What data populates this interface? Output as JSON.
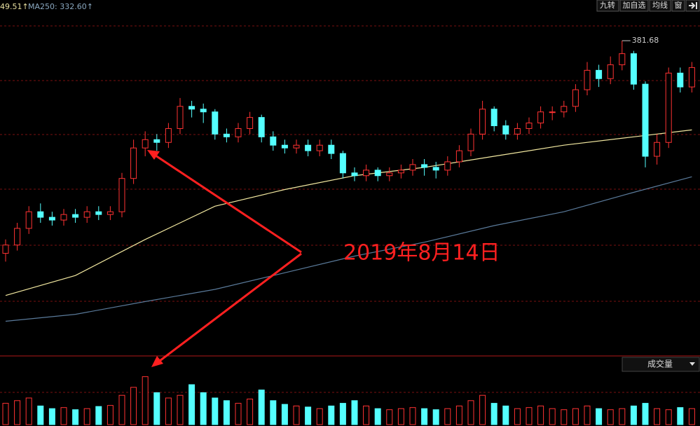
{
  "header": {
    "ma_partial": "49.51↑",
    "ma250": "MA250: 332.60↑",
    "buttons": [
      "九转",
      "加自选",
      "均线",
      "窗"
    ]
  },
  "annotation": "2019年8月14日",
  "volume_label": "成交量",
  "chart_data": {
    "type": "candlestick",
    "up_color": "#ff3232",
    "down_color": "#54ffff",
    "ylim": [
      268,
      391.3
    ],
    "volume_ylim": [
      0,
      100
    ],
    "open": [
      305,
      308,
      314,
      320,
      318,
      317,
      319,
      318,
      320,
      319,
      320,
      332,
      343,
      346,
      345,
      350,
      358,
      357,
      356,
      348,
      347,
      350,
      354,
      347,
      344,
      343,
      344,
      342,
      344,
      341,
      334,
      333,
      335,
      333,
      334,
      335,
      337,
      336,
      335,
      338,
      342,
      348,
      357,
      351,
      348,
      350,
      352,
      356,
      356,
      358,
      364,
      371,
      368,
      373,
      377,
      366,
      340,
      345,
      370,
      365
    ],
    "high": [
      310,
      316,
      322,
      323,
      320,
      321,
      321,
      322,
      322,
      322,
      334,
      346,
      349,
      348,
      352,
      361,
      360,
      359,
      357,
      350,
      352,
      356,
      355,
      349,
      346,
      346,
      346,
      346,
      346,
      342,
      336,
      337,
      336,
      336,
      337,
      339,
      339,
      338,
      340,
      344,
      350,
      360,
      358,
      353,
      352,
      354,
      358,
      358,
      360,
      366,
      374,
      373,
      376,
      381.68,
      378,
      367,
      348,
      372,
      372,
      374
    ],
    "low": [
      302,
      306,
      312,
      316,
      315,
      315,
      316,
      316,
      317,
      317,
      318,
      330,
      340,
      342,
      343,
      348,
      354,
      352,
      346,
      345,
      345,
      348,
      345,
      342,
      341,
      341,
      340,
      340,
      339,
      332,
      331,
      331,
      331,
      331,
      332,
      333,
      333,
      332,
      333,
      336,
      340,
      346,
      349,
      346,
      346,
      348,
      350,
      353,
      354,
      356,
      362,
      365,
      366,
      371,
      364,
      336,
      337,
      343,
      363,
      363
    ],
    "close": [
      308,
      314,
      320,
      318,
      317,
      319,
      318,
      320,
      319,
      320,
      332,
      343,
      346,
      345,
      350,
      358,
      357,
      356,
      348,
      347,
      350,
      354,
      347,
      344,
      343,
      344,
      342,
      344,
      341,
      334,
      333,
      335,
      333,
      334,
      335,
      337,
      336,
      335,
      338,
      342,
      348,
      357,
      351,
      348,
      350,
      352,
      356,
      356,
      358,
      364,
      371,
      368,
      373,
      377,
      366,
      340,
      345,
      370,
      365,
      372
    ],
    "volume": [
      40,
      45,
      50,
      35,
      30,
      32,
      28,
      30,
      34,
      36,
      55,
      70,
      90,
      60,
      50,
      55,
      75,
      60,
      50,
      45,
      40,
      48,
      65,
      45,
      38,
      35,
      33,
      30,
      35,
      40,
      45,
      35,
      30,
      28,
      30,
      32,
      30,
      28,
      30,
      35,
      45,
      55,
      40,
      35,
      30,
      32,
      35,
      30,
      28,
      30,
      35,
      30,
      28,
      30,
      35,
      40,
      30,
      28,
      32,
      30
    ],
    "lines": [
      {
        "color": "#f2e8a0",
        "x": [
          0,
          6,
          12,
          18,
          24,
          30,
          36,
          42,
          48,
          54,
          59
        ],
        "values": [
          289.8,
          297,
          310,
          322,
          328,
          333,
          336,
          340,
          344,
          347,
          349.51
        ]
      },
      {
        "color": "#5a7a9a",
        "x": [
          0,
          6,
          12,
          18,
          24,
          30,
          36,
          42,
          48,
          54,
          59
        ],
        "values": [
          280.5,
          283,
          287.6,
          292,
          298,
          304,
          309,
          315,
          320,
          327,
          332.6
        ]
      }
    ]
  }
}
